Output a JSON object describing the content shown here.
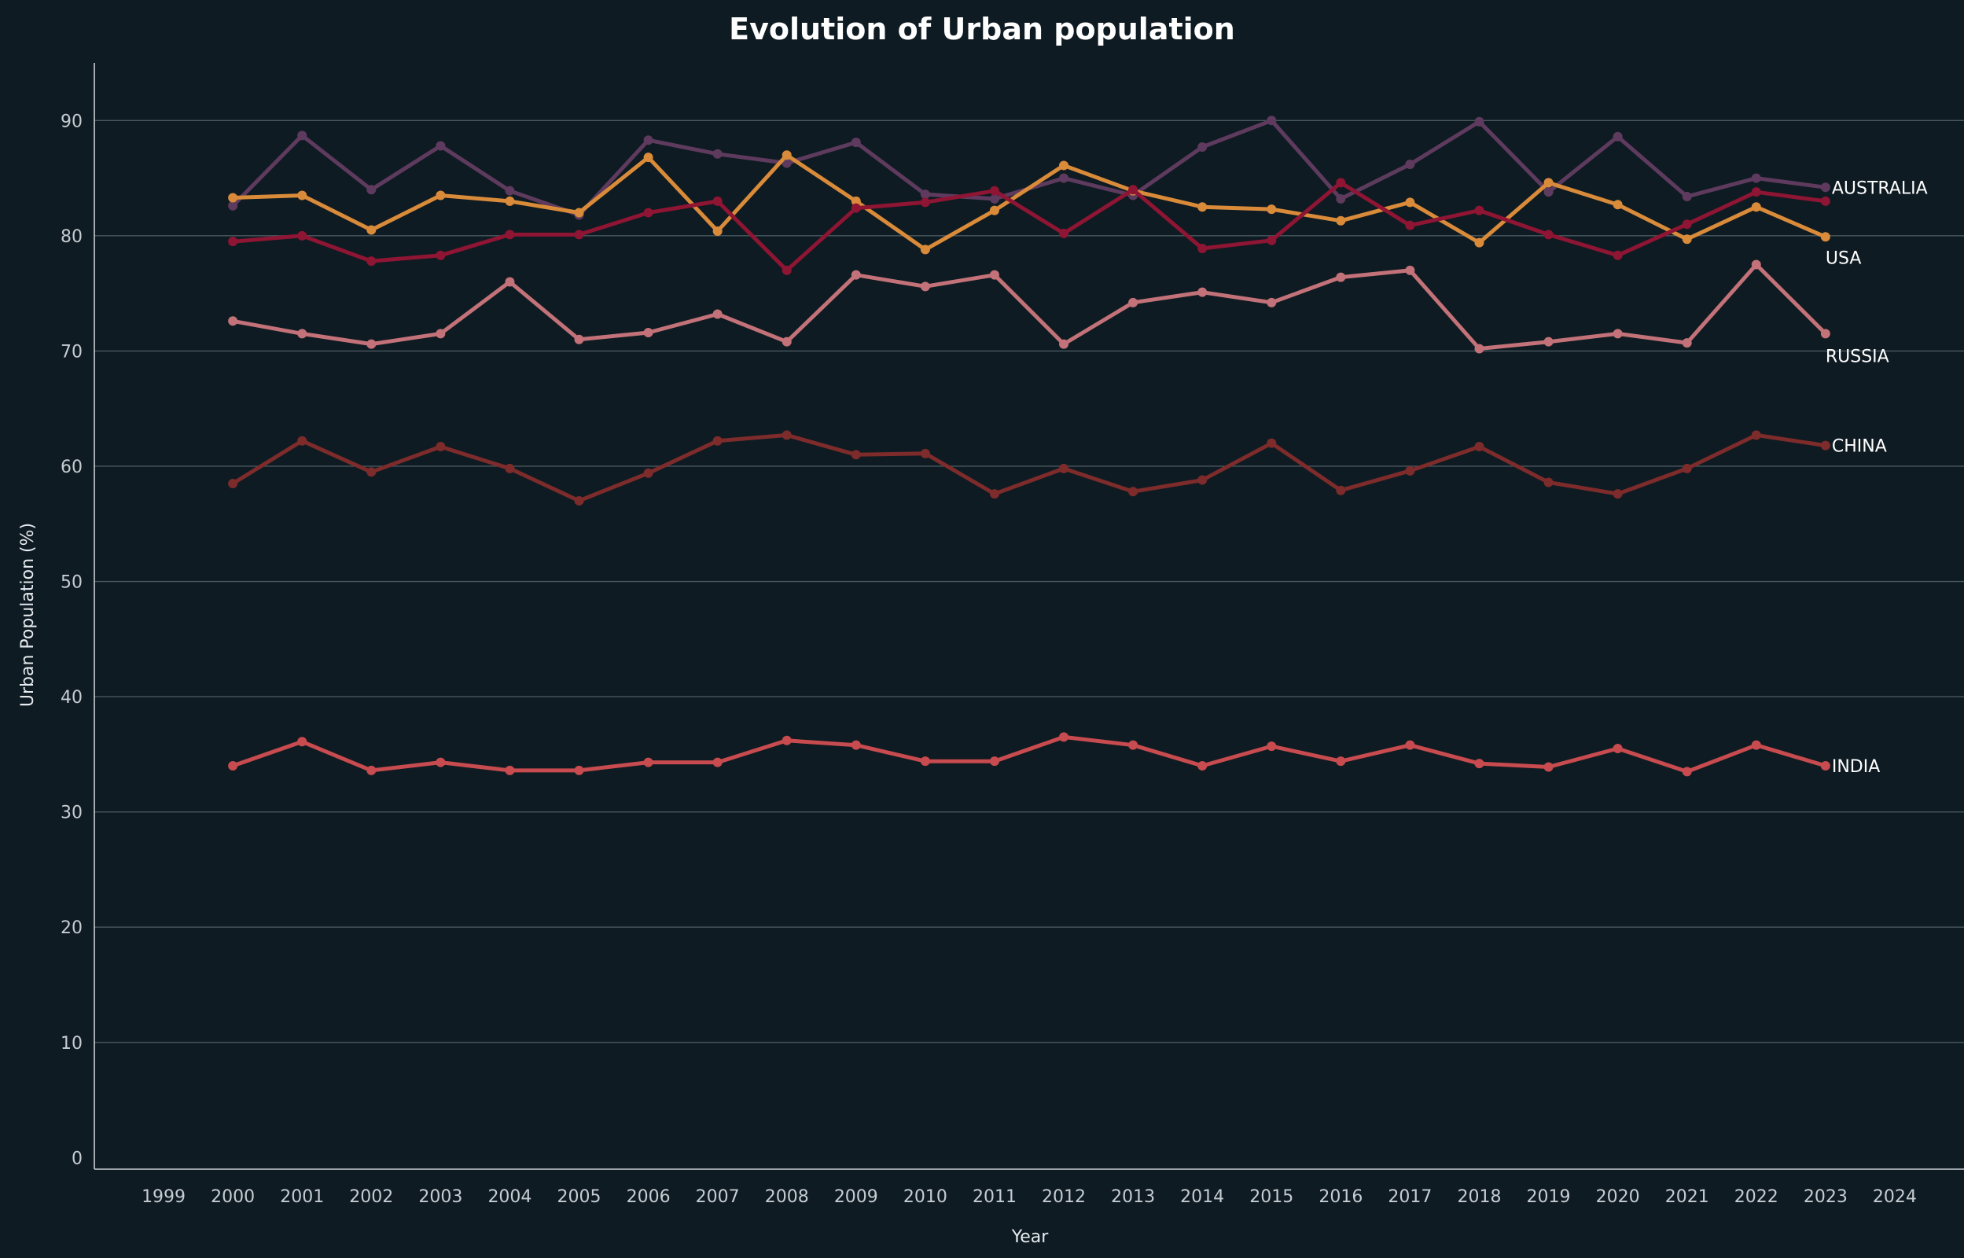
{
  "chart_data": {
    "type": "line",
    "title": "Evolution of Urban population",
    "xlabel": "Year",
    "ylabel": "Urban Population (%)",
    "xlim": [
      1998,
      2025
    ],
    "ylim": [
      -1,
      95
    ],
    "xticks": [
      1999,
      2000,
      2001,
      2002,
      2003,
      2004,
      2005,
      2006,
      2007,
      2008,
      2009,
      2010,
      2011,
      2012,
      2013,
      2014,
      2015,
      2016,
      2017,
      2018,
      2019,
      2020,
      2021,
      2022,
      2023,
      2024
    ],
    "yticks": [
      0,
      10,
      20,
      30,
      40,
      50,
      60,
      70,
      80,
      90
    ],
    "grid": "horizontal",
    "legend": "none (series labels at line ends)",
    "x": [
      2000,
      2001,
      2002,
      2003,
      2004,
      2005,
      2006,
      2007,
      2008,
      2009,
      2010,
      2011,
      2012,
      2013,
      2014,
      2015,
      2016,
      2017,
      2018,
      2019,
      2020,
      2021,
      2022,
      2023
    ],
    "series": [
      {
        "name": "AUSTRALIA",
        "color": "#5e3b5e",
        "values": [
          82.6,
          88.7,
          84.0,
          87.8,
          83.9,
          81.8,
          88.3,
          87.1,
          86.3,
          88.1,
          83.6,
          83.2,
          85.0,
          83.5,
          87.7,
          90.0,
          83.2,
          86.2,
          89.9,
          83.8,
          88.6,
          83.4,
          85.0,
          84.2
        ]
      },
      {
        "name": "USA",
        "color": "#d98b3a",
        "values": [
          83.3,
          83.5,
          80.5,
          83.5,
          83.0,
          82.0,
          86.8,
          80.4,
          87.0,
          83.0,
          78.8,
          82.2,
          86.1,
          83.9,
          82.5,
          82.3,
          81.3,
          82.9,
          79.4,
          84.6,
          82.7,
          79.7,
          82.5,
          79.9
        ]
      },
      {
        "name": "",
        "color": "#8e1533",
        "values": [
          79.5,
          80.0,
          77.8,
          78.3,
          80.1,
          80.1,
          82.0,
          83.0,
          77.0,
          82.4,
          82.9,
          83.9,
          80.2,
          84.0,
          78.9,
          79.6,
          84.6,
          80.9,
          82.2,
          80.1,
          78.3,
          81.0,
          83.8,
          83.0
        ]
      },
      {
        "name": "RUSSIA",
        "color": "#c27278",
        "values": [
          72.6,
          71.5,
          70.6,
          71.5,
          76.0,
          71.0,
          71.6,
          73.2,
          70.8,
          76.6,
          75.6,
          76.6,
          70.6,
          74.2,
          75.1,
          74.2,
          76.4,
          77.0,
          70.2,
          70.8,
          71.5,
          70.7,
          77.5,
          71.5
        ]
      },
      {
        "name": "CHINA",
        "color": "#7d2b2b",
        "values": [
          58.5,
          62.2,
          59.5,
          61.7,
          59.8,
          57.0,
          59.4,
          62.2,
          62.7,
          61.0,
          61.1,
          57.6,
          59.8,
          57.8,
          58.8,
          62.0,
          57.9,
          59.6,
          61.7,
          58.6,
          57.6,
          59.8,
          62.7,
          61.8
        ]
      },
      {
        "name": "INDIA",
        "color": "#c74b4f",
        "values": [
          34.0,
          36.1,
          33.6,
          34.3,
          33.6,
          33.6,
          34.3,
          34.3,
          36.2,
          35.8,
          34.4,
          34.4,
          36.5,
          35.8,
          34.0,
          35.7,
          34.4,
          35.8,
          34.2,
          33.9,
          35.5,
          33.5,
          35.8,
          34.0
        ]
      }
    ]
  }
}
